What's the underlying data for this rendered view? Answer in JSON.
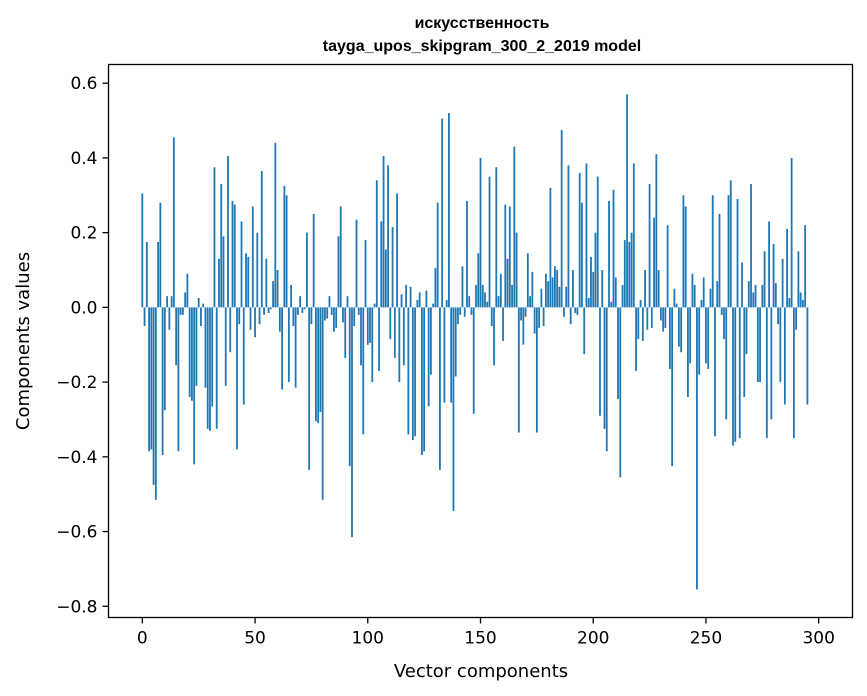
{
  "chart_data": {
    "type": "bar",
    "title": "искусственность",
    "subtitle": "tayga_upos_skipgram_300_2_2019 model",
    "xlabel": "Vector components",
    "ylabel": "Components values",
    "xlim": [
      -15,
      315
    ],
    "ylim": [
      -0.83,
      0.65
    ],
    "xticks": [
      0,
      50,
      100,
      150,
      200,
      250,
      300
    ],
    "xtick_labels": [
      "0",
      "50",
      "100",
      "150",
      "200",
      "250",
      "300"
    ],
    "yticks": [
      -0.8,
      -0.6,
      -0.4,
      -0.2,
      0.0,
      0.2,
      0.4,
      0.6
    ],
    "ytick_labels": [
      "−0.8",
      "−0.6",
      "−0.4",
      "−0.2",
      "0.0",
      "0.2",
      "0.4",
      "0.6"
    ],
    "bar_color": "#1f77b4",
    "values": [
      0.305,
      -0.05,
      0.175,
      -0.385,
      -0.38,
      -0.475,
      -0.515,
      0.175,
      0.28,
      -0.395,
      -0.275,
      0.03,
      -0.06,
      0.03,
      0.455,
      -0.155,
      -0.385,
      -0.02,
      -0.02,
      0.04,
      0.09,
      -0.24,
      -0.25,
      -0.42,
      -0.21,
      0.025,
      -0.05,
      0.01,
      -0.215,
      -0.325,
      -0.33,
      -0.265,
      0.375,
      -0.325,
      0.13,
      0.33,
      0.19,
      -0.21,
      0.405,
      -0.12,
      0.285,
      0.275,
      -0.38,
      -0.045,
      0.23,
      -0.26,
      0.145,
      0.135,
      -0.06,
      0.27,
      -0.08,
      0.2,
      -0.045,
      0.365,
      -0.02,
      0.13,
      -0.015,
      -0.005,
      0.07,
      0.44,
      0.1,
      -0.065,
      -0.22,
      0.325,
      0.3,
      -0.2,
      0.06,
      -0.05,
      -0.215,
      -0.02,
      0.03,
      -0.015,
      -0.005,
      0.2,
      -0.435,
      -0.045,
      0.25,
      -0.305,
      -0.31,
      -0.28,
      -0.515,
      -0.035,
      -0.03,
      0.03,
      -0.02,
      -0.065,
      -0.055,
      0.19,
      0.27,
      -0.04,
      -0.135,
      0.03,
      -0.425,
      -0.615,
      -0.05,
      0.235,
      -0.02,
      -0.155,
      -0.34,
      0.18,
      -0.1,
      -0.095,
      -0.2,
      0.01,
      0.34,
      -0.17,
      0.23,
      0.405,
      0.155,
      0.38,
      -0.085,
      0.215,
      -0.135,
      0.305,
      -0.2,
      0.035,
      -0.155,
      0.06,
      -0.34,
      0.055,
      -0.355,
      -0.345,
      0.02,
      0.04,
      -0.395,
      -0.385,
      0.045,
      -0.265,
      -0.18,
      0.01,
      0.105,
      0.28,
      -0.435,
      0.505,
      -0.255,
      0.02,
      0.52,
      -0.255,
      -0.545,
      -0.185,
      -0.045,
      -0.02,
      0.11,
      -0.025,
      0.285,
      0.03,
      -0.02,
      -0.285,
      0.06,
      0.145,
      0.4,
      0.06,
      0.04,
      0.015,
      0.35,
      -0.05,
      -0.155,
      0.375,
      0.03,
      0.09,
      -0.09,
      0.275,
      0.13,
      0.27,
      0.06,
      0.43,
      0.2,
      -0.335,
      -0.035,
      -0.1,
      -0.025,
      0.145,
      0.03,
      0.095,
      -0.07,
      -0.335,
      -0.055,
      0.05,
      -0.05,
      0.09,
      0.07,
      0.32,
      0.08,
      0.11,
      0.1,
      0.055,
      0.475,
      -0.025,
      0.055,
      0.38,
      -0.045,
      0.1,
      -0.015,
      -0.02,
      0.36,
      0.28,
      -0.125,
      0.385,
      0.025,
      0.135,
      0.095,
      0.2,
      0.35,
      -0.29,
      0.1,
      -0.325,
      -0.385,
      0.285,
      0.015,
      0.315,
      0.08,
      -0.245,
      -0.455,
      0.06,
      0.18,
      0.57,
      0.175,
      0.2,
      0.385,
      -0.17,
      -0.085,
      0.02,
      -0.09,
      0.1,
      -0.06,
      0.33,
      -0.055,
      0.24,
      0.41,
      0.1,
      -0.035,
      -0.065,
      -0.055,
      0.22,
      -0.165,
      -0.425,
      0.05,
      0.01,
      -0.105,
      -0.12,
      0.3,
      0.27,
      -0.24,
      -0.15,
      0.09,
      0.06,
      -0.755,
      -0.18,
      0.02,
      0.08,
      -0.15,
      -0.165,
      0.05,
      0.3,
      -0.345,
      0.07,
      0.25,
      -0.02,
      -0.085,
      -0.3,
      0.3,
      0.34,
      -0.37,
      -0.36,
      0.29,
      -0.35,
      0.12,
      -0.24,
      -0.125,
      0.07,
      0.33,
      0.04,
      0.06,
      -0.2,
      -0.2,
      0.06,
      0.15,
      -0.35,
      0.23,
      -0.3,
      0.17,
      0.065,
      -0.045,
      -0.2,
      0.13,
      -0.26,
      0.21,
      0.025,
      0.4,
      -0.35,
      -0.06,
      0.15,
      0.04,
      0.02,
      0.22,
      -0.26
    ]
  }
}
